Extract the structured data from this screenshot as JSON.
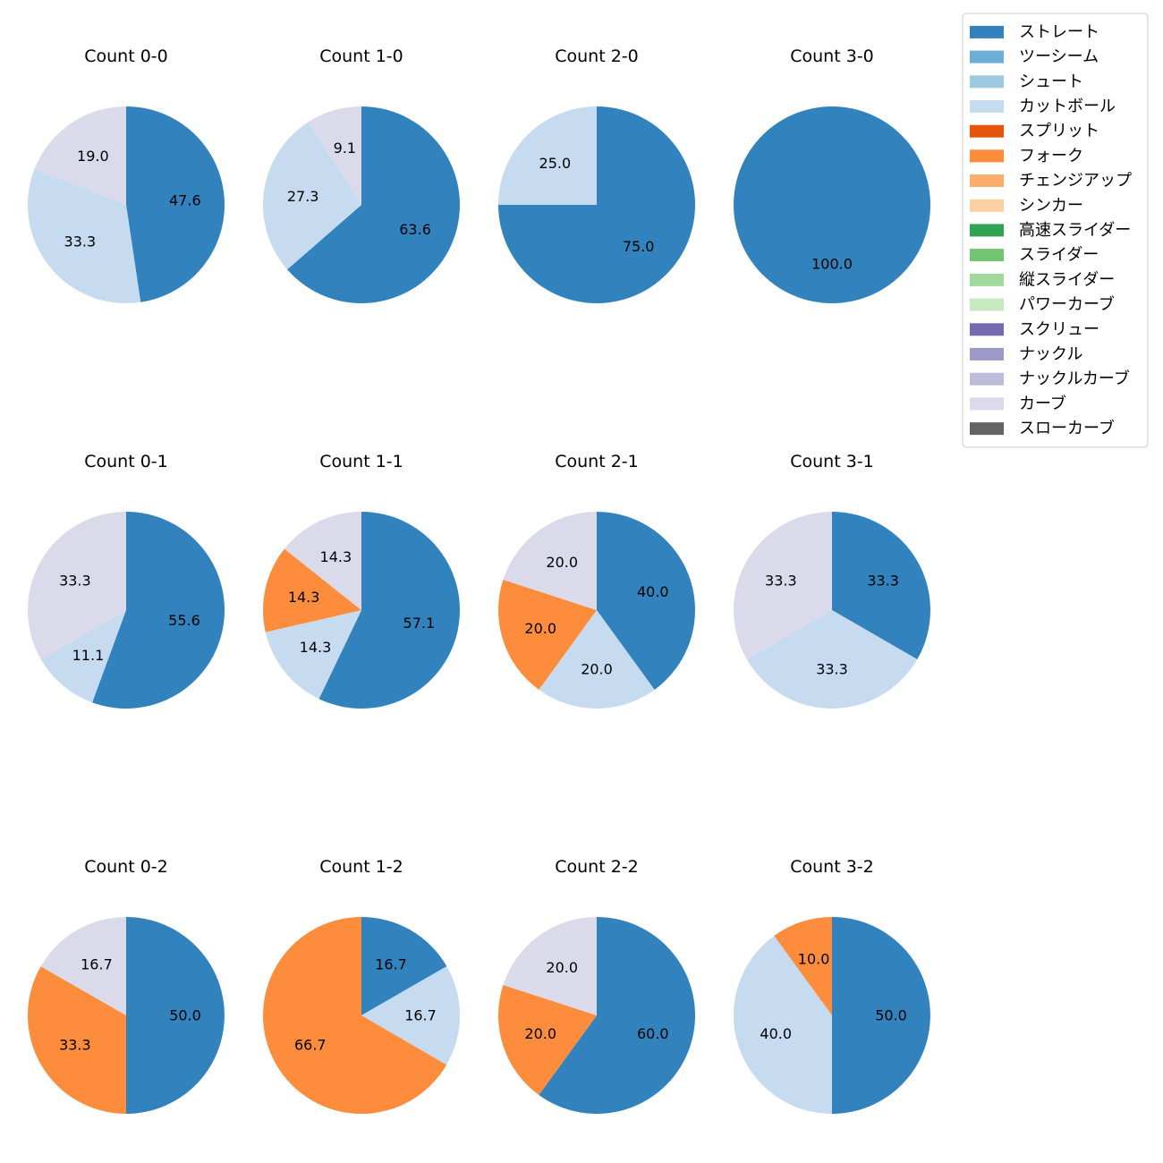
{
  "chart_data": {
    "type": "pie",
    "pitch_types": [
      {
        "name": "ストレート",
        "color": "#3182bd"
      },
      {
        "name": "ツーシーム",
        "color": "#6baed6"
      },
      {
        "name": "シュート",
        "color": "#9ecae1"
      },
      {
        "name": "カットボール",
        "color": "#c6dbef"
      },
      {
        "name": "スプリット",
        "color": "#e6550d"
      },
      {
        "name": "フォーク",
        "color": "#fd8d3c"
      },
      {
        "name": "チェンジアップ",
        "color": "#fdae6b"
      },
      {
        "name": "シンカー",
        "color": "#fdd0a2"
      },
      {
        "name": "高速スライダー",
        "color": "#31a354"
      },
      {
        "name": "スライダー",
        "color": "#74c476"
      },
      {
        "name": "縦スライダー",
        "color": "#a1d99b"
      },
      {
        "name": "パワーカーブ",
        "color": "#c7e9c0"
      },
      {
        "name": "スクリュー",
        "color": "#756bb1"
      },
      {
        "name": "ナックル",
        "color": "#9e9ac8"
      },
      {
        "name": "ナックルカーブ",
        "color": "#bcbddc"
      },
      {
        "name": "カーブ",
        "color": "#dadaeb"
      },
      {
        "name": "スローカーブ",
        "color": "#636363"
      }
    ],
    "charts": [
      {
        "title": "Count 0-0",
        "slices": [
          {
            "type": "ストレート",
            "value": 47.6
          },
          {
            "type": "カットボール",
            "value": 33.3
          },
          {
            "type": "カーブ",
            "value": 19.0
          }
        ]
      },
      {
        "title": "Count 1-0",
        "slices": [
          {
            "type": "ストレート",
            "value": 63.6
          },
          {
            "type": "カットボール",
            "value": 27.3
          },
          {
            "type": "カーブ",
            "value": 9.1
          }
        ]
      },
      {
        "title": "Count 2-0",
        "slices": [
          {
            "type": "ストレート",
            "value": 75.0
          },
          {
            "type": "カットボール",
            "value": 25.0
          }
        ]
      },
      {
        "title": "Count 3-0",
        "slices": [
          {
            "type": "ストレート",
            "value": 100.0
          }
        ]
      },
      {
        "title": "Count 0-1",
        "slices": [
          {
            "type": "ストレート",
            "value": 55.6
          },
          {
            "type": "カットボール",
            "value": 11.1
          },
          {
            "type": "カーブ",
            "value": 33.3
          }
        ]
      },
      {
        "title": "Count 1-1",
        "slices": [
          {
            "type": "ストレート",
            "value": 57.1
          },
          {
            "type": "カットボール",
            "value": 14.3
          },
          {
            "type": "フォーク",
            "value": 14.3
          },
          {
            "type": "カーブ",
            "value": 14.3
          }
        ]
      },
      {
        "title": "Count 2-1",
        "slices": [
          {
            "type": "ストレート",
            "value": 40.0
          },
          {
            "type": "カットボール",
            "value": 20.0
          },
          {
            "type": "フォーク",
            "value": 20.0
          },
          {
            "type": "カーブ",
            "value": 20.0
          }
        ]
      },
      {
        "title": "Count 3-1",
        "slices": [
          {
            "type": "ストレート",
            "value": 33.3
          },
          {
            "type": "カットボール",
            "value": 33.3
          },
          {
            "type": "カーブ",
            "value": 33.3
          }
        ]
      },
      {
        "title": "Count 0-2",
        "slices": [
          {
            "type": "ストレート",
            "value": 50.0
          },
          {
            "type": "フォーク",
            "value": 33.3
          },
          {
            "type": "カーブ",
            "value": 16.7
          }
        ]
      },
      {
        "title": "Count 1-2",
        "slices": [
          {
            "type": "ストレート",
            "value": 16.7
          },
          {
            "type": "カットボール",
            "value": 16.7
          },
          {
            "type": "フォーク",
            "value": 66.7
          }
        ]
      },
      {
        "title": "Count 2-2",
        "slices": [
          {
            "type": "ストレート",
            "value": 60.0
          },
          {
            "type": "フォーク",
            "value": 20.0
          },
          {
            "type": "カーブ",
            "value": 20.0
          }
        ]
      },
      {
        "title": "Count 3-2",
        "slices": [
          {
            "type": "ストレート",
            "value": 50.0
          },
          {
            "type": "カットボール",
            "value": 40.0
          },
          {
            "type": "フォーク",
            "value": 10.0
          }
        ]
      }
    ],
    "legend_position": "top-right"
  }
}
